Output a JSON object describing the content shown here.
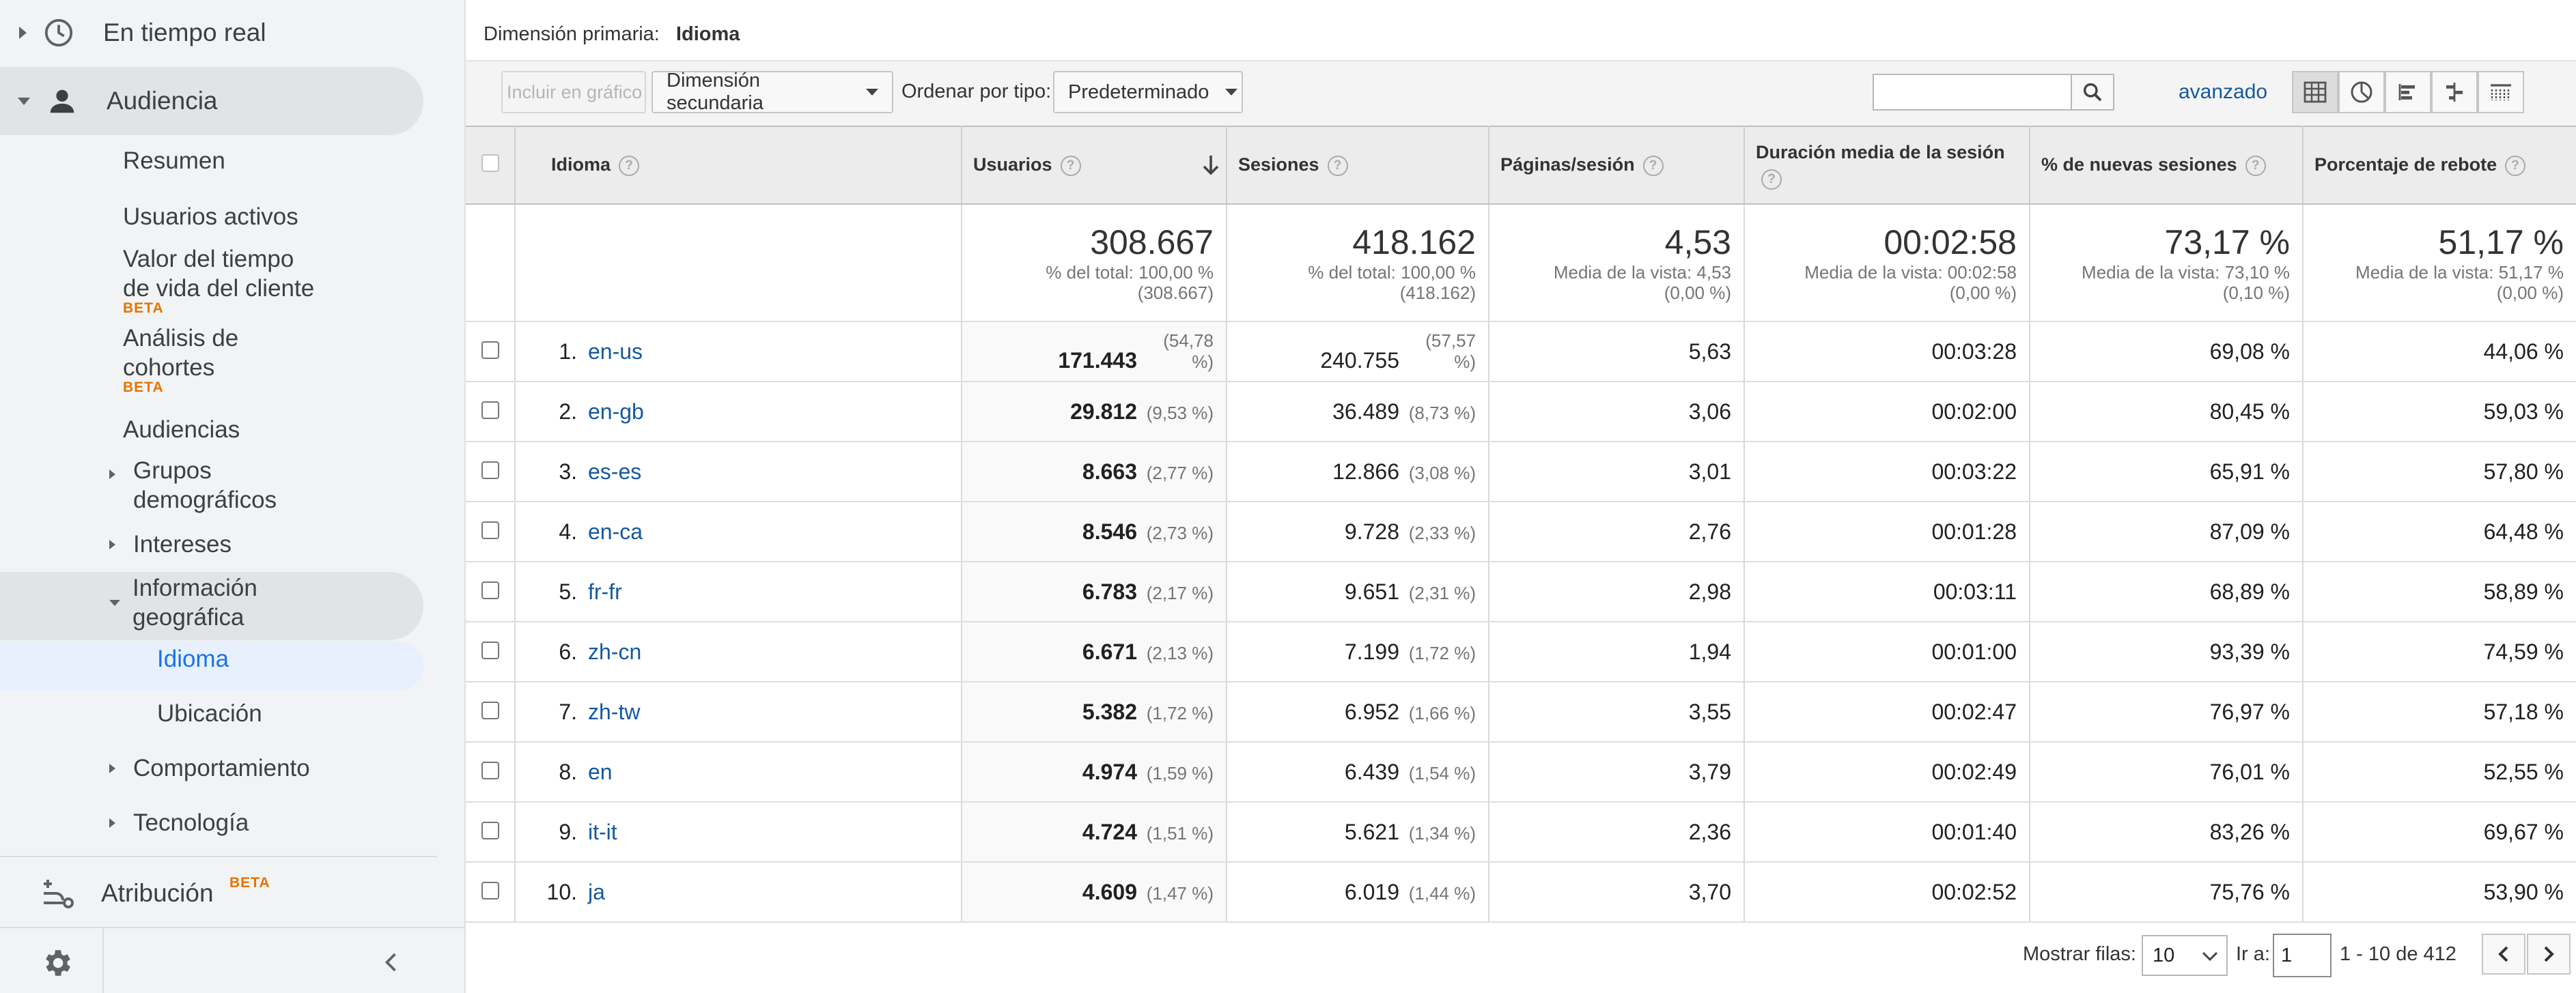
{
  "sidebar": {
    "realtime": "En tiempo real",
    "audience": "Audiencia",
    "items": {
      "resumen": "Resumen",
      "usuarios_activos": "Usuarios activos",
      "valor_line1": "Valor del tiempo",
      "valor_line2": "de vida del cliente",
      "cohortes_line1": "Análisis de",
      "cohortes_line2": "cohortes",
      "audiencias": "Audiencias",
      "grupos_line1": "Grupos",
      "grupos_line2": "demográficos",
      "intereses": "Intereses",
      "geo_line1": "Información",
      "geo_line2": "geográfica",
      "idioma": "Idioma",
      "ubicacion": "Ubicación",
      "comportamiento": "Comportamiento",
      "tecnologia": "Tecnología"
    },
    "beta": "BETA",
    "attribution": "Atribución"
  },
  "header": {
    "primary_label": "Dimensión primaria:",
    "primary_value": "Idioma"
  },
  "toolbar": {
    "include_chart": "Incluir en gráfico",
    "secondary_dim": "Dimensión secundaria",
    "sort_label": "Ordenar por tipo:",
    "sort_value": "Predeterminado",
    "search_value": "",
    "advanced": "avanzado"
  },
  "columns": {
    "idioma": "Idioma",
    "usuarios": "Usuarios",
    "sesiones": "Sesiones",
    "paginas": "Páginas/sesión",
    "duracion": "Duración media de la sesión",
    "nuevas": "% de nuevas sesiones",
    "rebote": "Porcentaje de rebote"
  },
  "totals": {
    "usuarios": {
      "big": "308.667",
      "l1": "% del total: 100,00 %",
      "l2": "(308.667)"
    },
    "sesiones": {
      "big": "418.162",
      "l1": "% del total: 100,00 %",
      "l2": "(418.162)"
    },
    "paginas": {
      "big": "4,53",
      "l1": "Media de la vista: 4,53",
      "l2": "(0,00 %)"
    },
    "duracion": {
      "big": "00:02:58",
      "l1": "Media de la vista: 00:02:58",
      "l2": "(0,00 %)"
    },
    "nuevas": {
      "big": "73,17 %",
      "l1": "Media de la vista: 73,10 %",
      "l2": "(0,10 %)"
    },
    "rebote": {
      "big": "51,17 %",
      "l1": "Media de la vista: 51,17 %",
      "l2": "(0,00 %)"
    }
  },
  "rows": [
    {
      "n": "1.",
      "lang": "en-us",
      "users": "171.443",
      "users_pct": "(54,78 %)",
      "sess": "240.755",
      "sess_pct": "(57,57 %)",
      "pages": "5,63",
      "dur": "00:03:28",
      "new": "69,08 %",
      "bounce": "44,06 %"
    },
    {
      "n": "2.",
      "lang": "en-gb",
      "users": "29.812",
      "users_pct": "(9,53 %)",
      "sess": "36.489",
      "sess_pct": "(8,73 %)",
      "pages": "3,06",
      "dur": "00:02:00",
      "new": "80,45 %",
      "bounce": "59,03 %"
    },
    {
      "n": "3.",
      "lang": "es-es",
      "users": "8.663",
      "users_pct": "(2,77 %)",
      "sess": "12.866",
      "sess_pct": "(3,08 %)",
      "pages": "3,01",
      "dur": "00:03:22",
      "new": "65,91 %",
      "bounce": "57,80 %"
    },
    {
      "n": "4.",
      "lang": "en-ca",
      "users": "8.546",
      "users_pct": "(2,73 %)",
      "sess": "9.728",
      "sess_pct": "(2,33 %)",
      "pages": "2,76",
      "dur": "00:01:28",
      "new": "87,09 %",
      "bounce": "64,48 %"
    },
    {
      "n": "5.",
      "lang": "fr-fr",
      "users": "6.783",
      "users_pct": "(2,17 %)",
      "sess": "9.651",
      "sess_pct": "(2,31 %)",
      "pages": "2,98",
      "dur": "00:03:11",
      "new": "68,89 %",
      "bounce": "58,89 %"
    },
    {
      "n": "6.",
      "lang": "zh-cn",
      "users": "6.671",
      "users_pct": "(2,13 %)",
      "sess": "7.199",
      "sess_pct": "(1,72 %)",
      "pages": "1,94",
      "dur": "00:01:00",
      "new": "93,39 %",
      "bounce": "74,59 %"
    },
    {
      "n": "7.",
      "lang": "zh-tw",
      "users": "5.382",
      "users_pct": "(1,72 %)",
      "sess": "6.952",
      "sess_pct": "(1,66 %)",
      "pages": "3,55",
      "dur": "00:02:47",
      "new": "76,97 %",
      "bounce": "57,18 %"
    },
    {
      "n": "8.",
      "lang": "en",
      "users": "4.974",
      "users_pct": "(1,59 %)",
      "sess": "6.439",
      "sess_pct": "(1,54 %)",
      "pages": "3,79",
      "dur": "00:02:49",
      "new": "76,01 %",
      "bounce": "52,55 %"
    },
    {
      "n": "9.",
      "lang": "it-it",
      "users": "4.724",
      "users_pct": "(1,51 %)",
      "sess": "5.621",
      "sess_pct": "(1,34 %)",
      "pages": "2,36",
      "dur": "00:01:40",
      "new": "83,26 %",
      "bounce": "69,67 %"
    },
    {
      "n": "10.",
      "lang": "ja",
      "users": "4.609",
      "users_pct": "(1,47 %)",
      "sess": "6.019",
      "sess_pct": "(1,44 %)",
      "pages": "3,70",
      "dur": "00:02:52",
      "new": "75,76 %",
      "bounce": "53,90 %"
    }
  ],
  "pagination": {
    "show_rows_label": "Mostrar filas:",
    "show_rows_value": "10",
    "goto_label": "Ir a:",
    "goto_value": "1",
    "range": "1 - 10 de 412"
  },
  "icons": {
    "clock": "clock-icon",
    "person": "person-icon",
    "attribution": "attribution-icon",
    "gear": "gear-icon",
    "collapse": "chevron-left-icon",
    "search": "search-icon",
    "sort_desc": "arrow-down-icon",
    "help": "help-icon"
  },
  "colors": {
    "link": "#15589f",
    "beta": "#e37400",
    "selected_bg": "#e8f0fe",
    "selected_text": "#1a73e8"
  }
}
